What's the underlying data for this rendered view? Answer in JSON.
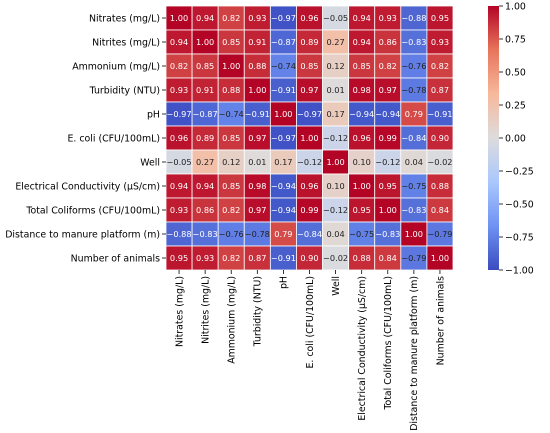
{
  "chart_data": {
    "type": "heatmap",
    "title": "",
    "xlabel": "",
    "ylabel": "",
    "variables": [
      "Nitrates (mg/L)",
      "Nitrites (mg/L)",
      "Ammonium (mg/L)",
      "Turbidity (NTU)",
      "pH",
      "E. coli (CFU/100mL)",
      "Well",
      "Electrical Conductivity (µS/cm)",
      "Total Coliforms (CFU/100mL)",
      "Distance to manure platform (m)",
      "Number of animals"
    ],
    "values": [
      [
        1.0,
        0.94,
        0.82,
        0.93,
        -0.97,
        0.96,
        -0.05,
        0.94,
        0.93,
        -0.88,
        0.95
      ],
      [
        0.94,
        1.0,
        0.85,
        0.91,
        -0.87,
        0.89,
        0.27,
        0.94,
        0.86,
        -0.83,
        0.93
      ],
      [
        0.82,
        0.85,
        1.0,
        0.88,
        -0.74,
        0.85,
        0.12,
        0.85,
        0.82,
        -0.76,
        0.82
      ],
      [
        0.93,
        0.91,
        0.88,
        1.0,
        -0.91,
        0.97,
        0.01,
        0.98,
        0.97,
        -0.78,
        0.87
      ],
      [
        -0.97,
        -0.87,
        -0.74,
        -0.91,
        1.0,
        -0.97,
        0.17,
        -0.94,
        -0.94,
        0.79,
        -0.91
      ],
      [
        0.96,
        0.89,
        0.85,
        0.97,
        -0.97,
        1.0,
        -0.12,
        0.96,
        0.99,
        -0.84,
        0.9
      ],
      [
        -0.05,
        0.27,
        0.12,
        0.01,
        0.17,
        -0.12,
        1.0,
        0.1,
        -0.12,
        0.04,
        -0.02
      ],
      [
        0.94,
        0.94,
        0.85,
        0.98,
        -0.94,
        0.96,
        0.1,
        1.0,
        0.95,
        -0.75,
        0.88
      ],
      [
        0.93,
        0.86,
        0.82,
        0.97,
        -0.94,
        0.99,
        -0.12,
        0.95,
        1.0,
        -0.83,
        0.84
      ],
      [
        -0.88,
        -0.83,
        -0.76,
        -0.78,
        0.79,
        -0.84,
        0.04,
        -0.75,
        -0.83,
        1.0,
        -0.79
      ],
      [
        0.95,
        0.93,
        0.82,
        0.87,
        -0.91,
        0.9,
        -0.02,
        0.88,
        0.84,
        -0.79,
        1.0
      ]
    ],
    "value_range": [
      -1.0,
      1.0
    ],
    "colormap": "coolwarm",
    "colormap_stops": [
      "#3b4cc0",
      "#6f92f3",
      "#aac7fd",
      "#dddcdc",
      "#f7b89c",
      "#e7755b",
      "#b40426"
    ],
    "colorbar": {
      "position": "right",
      "ticks": [
        1.0,
        0.75,
        0.5,
        0.25,
        0.0,
        -0.25,
        -0.5,
        -0.75,
        -1.0
      ],
      "tick_labels": [
        "1.00",
        "0.75",
        "0.50",
        "0.25",
        "0.00",
        "−0.25",
        "−0.50",
        "−0.75",
        "−1.00"
      ]
    },
    "annotation_format": "two-decimals",
    "grid_lines": "white"
  }
}
